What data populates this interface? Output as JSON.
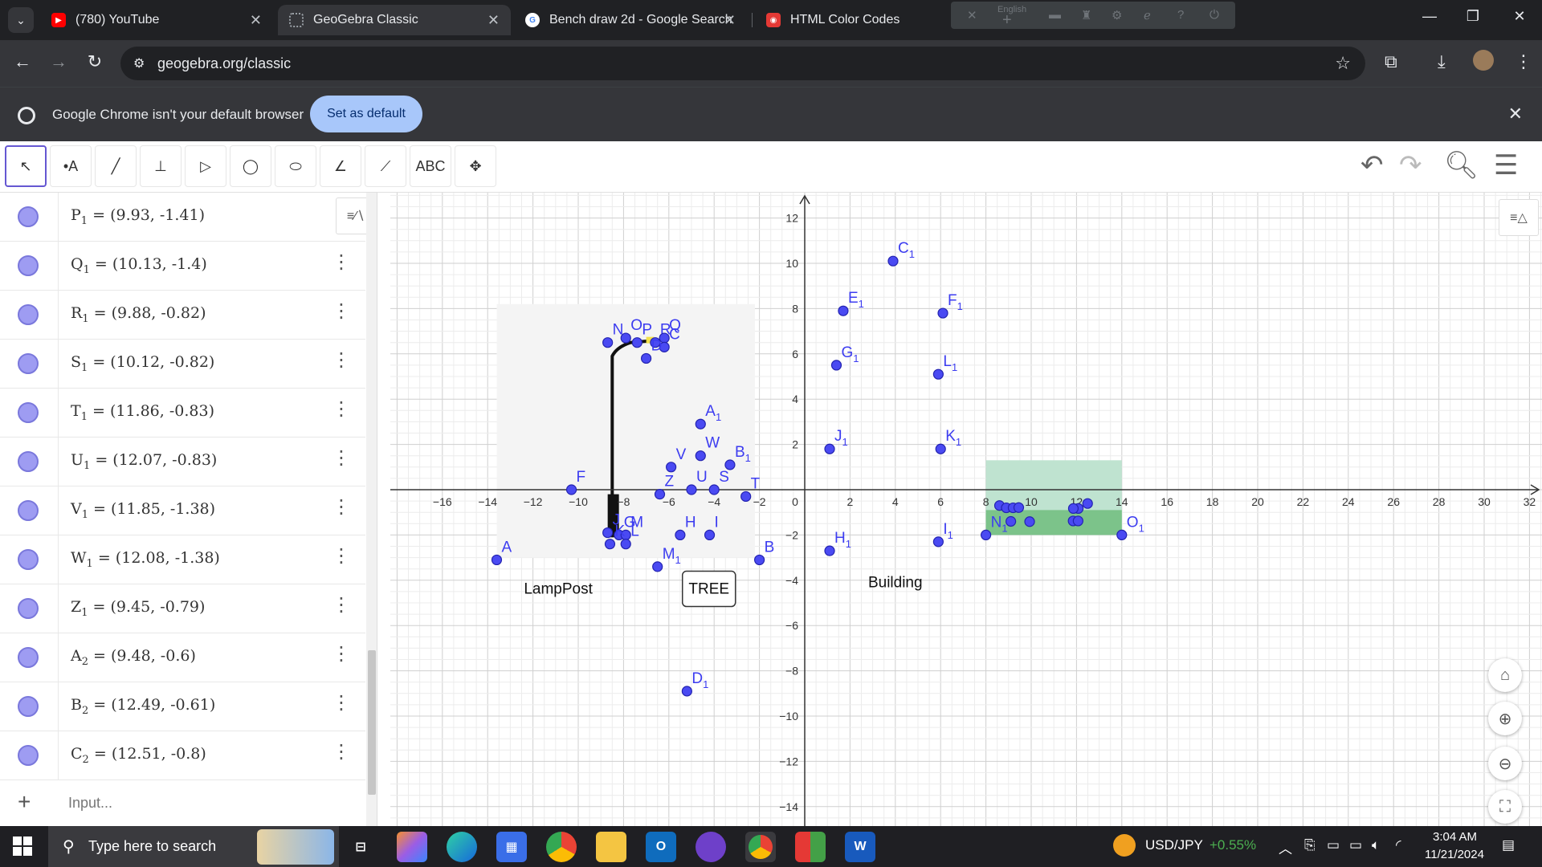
{
  "browser": {
    "tabs": [
      {
        "title": "(780) YouTube",
        "favicon": "youtube-icon",
        "color": "#ff0000"
      },
      {
        "title": "GeoGebra Classic",
        "favicon": "geogebra-icon",
        "color": "#99a"
      },
      {
        "title": "Bench draw 2d - Google Search",
        "favicon": "google-icon",
        "color": "#4285f4"
      },
      {
        "title": "HTML Color Codes",
        "favicon": "htmlcolor-icon",
        "color": "#e53935"
      }
    ],
    "ext_label": "English",
    "url": "geogebra.org/classic",
    "infobar": {
      "message": "Google Chrome isn't your default browser",
      "button": "Set as default"
    }
  },
  "geogebra": {
    "tools": [
      {
        "name": "move-tool",
        "glyph": "↖"
      },
      {
        "name": "point-tool",
        "glyph": "•A"
      },
      {
        "name": "line-tool",
        "glyph": "╱"
      },
      {
        "name": "perpendicular-tool",
        "glyph": "⊥"
      },
      {
        "name": "polygon-tool",
        "glyph": "▷"
      },
      {
        "name": "circle-tool",
        "glyph": "◯"
      },
      {
        "name": "conic-tool",
        "glyph": "⬭"
      },
      {
        "name": "angle-tool",
        "glyph": "∠"
      },
      {
        "name": "reflect-tool",
        "glyph": "⟋"
      },
      {
        "name": "text-tool",
        "glyph": "ABC"
      },
      {
        "name": "move-graphics-tool",
        "glyph": "✥"
      }
    ],
    "algebra": [
      {
        "name": "P",
        "sub": "1",
        "value": " = (9.93, -1.41)"
      },
      {
        "name": "Q",
        "sub": "1",
        "value": " = (10.13, -1.4)"
      },
      {
        "name": "R",
        "sub": "1",
        "value": " = (9.88, -0.82)"
      },
      {
        "name": "S",
        "sub": "1",
        "value": " = (10.12, -0.82)"
      },
      {
        "name": "T",
        "sub": "1",
        "value": " = (11.86, -0.83)"
      },
      {
        "name": "U",
        "sub": "1",
        "value": " = (12.07, -0.83)"
      },
      {
        "name": "V",
        "sub": "1",
        "value": " = (11.85, -1.38)"
      },
      {
        "name": "W",
        "sub": "1",
        "value": " = (12.08, -1.38)"
      },
      {
        "name": "Z",
        "sub": "1",
        "value": " = (9.45, -0.79)"
      },
      {
        "name": "A",
        "sub": "2",
        "value": " = (9.48, -0.6)"
      },
      {
        "name": "B",
        "sub": "2",
        "value": " = (12.49, -0.61)"
      },
      {
        "name": "C",
        "sub": "2",
        "value": " = (12.51, -0.8)"
      }
    ],
    "input_placeholder": "Input...",
    "graph": {
      "x_ticks": [
        "−16",
        "−14",
        "−12",
        "−10",
        "−8",
        "−6",
        "−4",
        "−2",
        "0",
        "2",
        "4",
        "6",
        "8",
        "10",
        "12",
        "14",
        "16",
        "18",
        "20",
        "22",
        "24",
        "26",
        "28",
        "30",
        "32"
      ],
      "y_ticks": [
        "12",
        "10",
        "8",
        "6",
        "4",
        "2",
        "−2",
        "−4",
        "−6",
        "−8",
        "−10",
        "−12",
        "−14"
      ],
      "point_color": "#3c3cf0",
      "text_labels": {
        "lamppost": "LampPost",
        "tree": "TREE",
        "building": "Building"
      },
      "points": [
        {
          "label": "C",
          "sub": "1",
          "x": 3.9,
          "y": 10.1
        },
        {
          "label": "E",
          "sub": "1",
          "x": 1.7,
          "y": 7.9
        },
        {
          "label": "F",
          "sub": "1",
          "x": 6.1,
          "y": 7.8
        },
        {
          "label": "G",
          "sub": "1",
          "x": 1.4,
          "y": 5.5
        },
        {
          "label": "L",
          "sub": "1",
          "x": 5.9,
          "y": 5.1
        },
        {
          "label": "J",
          "sub": "1",
          "x": 1.1,
          "y": 1.8
        },
        {
          "label": "K",
          "sub": "1",
          "x": 6.0,
          "y": 1.8
        },
        {
          "label": "H",
          "sub": "1",
          "x": 1.1,
          "y": -2.7
        },
        {
          "label": "I",
          "sub": "1",
          "x": 5.9,
          "y": -2.3
        },
        {
          "label": "N",
          "sub": "1",
          "x": 8.0,
          "y": -2.0
        },
        {
          "label": "O",
          "sub": "1",
          "x": 14.0,
          "y": -2.0
        },
        {
          "label": "D",
          "sub": "1",
          "x": -5.2,
          "y": -8.9
        },
        {
          "label": "A",
          "sub": "1",
          "x": -4.6,
          "y": 2.9
        },
        {
          "label": "B",
          "sub": "1",
          "x": -3.3,
          "y": 1.1
        },
        {
          "label": "W",
          "sub": "",
          "x": -4.6,
          "y": 1.5
        },
        {
          "label": "V",
          "sub": "",
          "x": -5.9,
          "y": 1.0
        },
        {
          "label": "U",
          "sub": "",
          "x": -5.0,
          "y": 0.0
        },
        {
          "label": "S",
          "sub": "",
          "x": -4.0,
          "y": 0.0
        },
        {
          "label": "T",
          "sub": "",
          "x": -2.6,
          "y": -0.3
        },
        {
          "label": "Z",
          "sub": "",
          "x": -6.4,
          "y": -0.2
        },
        {
          "label": "H",
          "sub": "",
          "x": -5.5,
          "y": -2.0
        },
        {
          "label": "I",
          "sub": "",
          "x": -4.2,
          "y": -2.0
        },
        {
          "label": "M",
          "sub": "1",
          "x": -6.5,
          "y": -3.4
        },
        {
          "label": "B",
          "sub": "",
          "x": -2.0,
          "y": -3.1
        },
        {
          "label": "A",
          "sub": "",
          "x": -13.6,
          "y": -3.1
        },
        {
          "label": "F",
          "sub": "",
          "x": -10.3,
          "y": 0.0
        },
        {
          "label": "N",
          "sub": "",
          "x": -8.7,
          "y": 6.5
        },
        {
          "label": "O",
          "sub": "",
          "x": -7.9,
          "y": 6.7
        },
        {
          "label": "P",
          "sub": "",
          "x": -7.4,
          "y": 6.5
        },
        {
          "label": "R",
          "sub": "",
          "x": -6.6,
          "y": 6.5
        },
        {
          "label": "Q",
          "sub": "",
          "x": -6.2,
          "y": 6.7
        },
        {
          "label": "C",
          "sub": "",
          "x": -6.2,
          "y": 6.3
        },
        {
          "label": "D",
          "sub": "",
          "x": -7.0,
          "y": 5.8
        },
        {
          "label": "G",
          "sub": "",
          "x": -8.2,
          "y": -2.0
        },
        {
          "label": "M",
          "sub": "",
          "x": -7.9,
          "y": -2.0
        },
        {
          "label": "L",
          "sub": "",
          "x": -7.9,
          "y": -2.4
        },
        {
          "label": "J",
          "sub": "",
          "x": -8.7,
          "y": -1.9
        },
        {
          "label": "K",
          "sub": "",
          "x": -8.6,
          "y": -2.4
        }
      ]
    }
  },
  "taskbar": {
    "search_placeholder": "Type here to search",
    "ticker": "USD/JPY",
    "ticker_change": "+0.55%",
    "time": "3:04 AM",
    "date": "11/21/2024"
  }
}
